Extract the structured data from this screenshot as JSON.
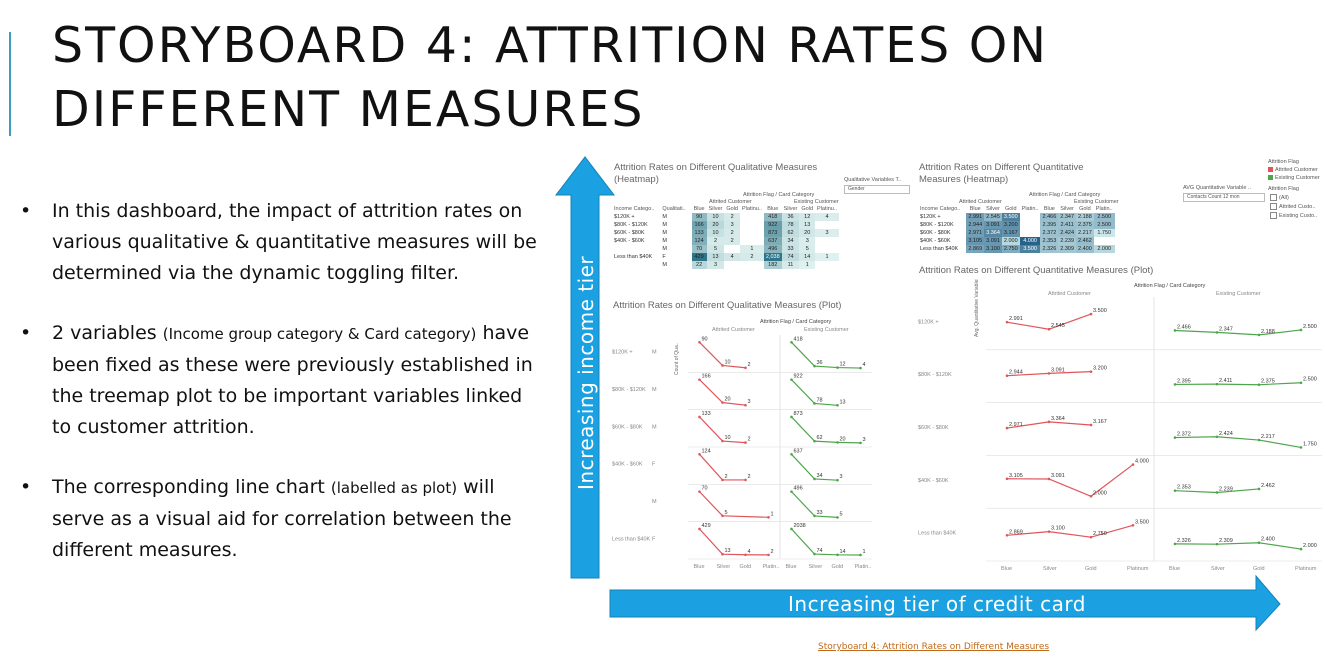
{
  "slide": {
    "title": "STORYBOARD 4: ATTRITION RATES ON DIFFERENT MEASURES",
    "bullets": [
      {
        "text": "In this dashboard, the impact of attrition rates on various qualitative & quantitative measures will be determined via the dynamic toggling filter."
      },
      {
        "pre": "2 variables ",
        "small": "(Income group category & Card category)",
        "post": " have been fixed as these were previously established in the treemap plot to be important variables linked to customer attrition."
      },
      {
        "pre": "The corresponding line chart ",
        "small": "(labelled as plot)",
        "post": " will serve as a visual aid for correlation between the different measures."
      }
    ],
    "bullet_glyph": "•",
    "vertical_arrow_label": "Increasing income tier",
    "horizontal_arrow_label": "Increasing tier of credit card",
    "footer_link": "Storyboard 4: Attrition Rates on Different Measures",
    "arrow_color": "#1ba1e2",
    "accent_color": "#3d9dbd"
  },
  "dashboard": {
    "qual_heatmap": {
      "title": "Attrition Rates on Different Qualitative Measures (Heatmap)",
      "header": "Attrition Flag / Card Category",
      "groups": [
        "Attrited Customer",
        "Existing Customer"
      ],
      "columns": [
        "Income Catego..",
        "Qualitati..",
        "Blue",
        "Silver",
        "Gold",
        "Platinu..",
        "Blue",
        "Silver",
        "Gold",
        "Platinu.."
      ],
      "rows": [
        [
          "$120K +",
          "M",
          "90",
          "10",
          "2",
          "",
          "418",
          "36",
          "12",
          "4"
        ],
        [
          "$80K - $120K",
          "M",
          "166",
          "20",
          "3",
          "",
          "922",
          "78",
          "13",
          ""
        ],
        [
          "$60K - $80K",
          "M",
          "133",
          "10",
          "2",
          "",
          "873",
          "62",
          "20",
          "3"
        ],
        [
          "$40K - $60K",
          "M",
          "124",
          "2",
          "2",
          "",
          "637",
          "34",
          "3",
          ""
        ],
        [
          "",
          "M",
          "70",
          "5",
          "",
          "1",
          "496",
          "33",
          "5",
          ""
        ],
        [
          "Less than $40K",
          "F",
          "429",
          "13",
          "4",
          "2",
          "2,038",
          "74",
          "14",
          "1"
        ],
        [
          "",
          "M",
          "22",
          "3",
          "",
          "",
          "182",
          "11",
          "1",
          ""
        ]
      ],
      "filter_label": "Qualitative Variables T..",
      "filter_value": "Gender"
    },
    "quant_heatmap": {
      "title": "Attrition Rates on Different Quantitative Measures (Heatmap)",
      "header": "Attrition Flag / Card Category",
      "groups": [
        "Attrited Customer",
        "Existing Customer"
      ],
      "columns": [
        "Income Catego..",
        "Blue",
        "Silver",
        "Gold",
        "Platin..",
        "Blue",
        "Silver",
        "Gold",
        "Platin.."
      ],
      "rows": [
        [
          "$120K +",
          "2.991",
          "2.545",
          "3.500",
          "",
          "2.466",
          "2.347",
          "2.188",
          "2.500"
        ],
        [
          "$80K - $120K",
          "2.944",
          "3.091",
          "3.200",
          "",
          "2.395",
          "2.411",
          "2.375",
          "2.500"
        ],
        [
          "$60K - $80K",
          "2.971",
          "3.364",
          "3.167",
          "",
          "2.372",
          "2.424",
          "2.217",
          "1.750"
        ],
        [
          "$40K - $60K",
          "3.105",
          "3.091",
          "2.000",
          "4.000",
          "2.353",
          "2.239",
          "2.462",
          ""
        ],
        [
          "Less than $40K",
          "2.869",
          "3.100",
          "2.750",
          "3.500",
          "2.326",
          "2.309",
          "2.400",
          "2.000"
        ]
      ],
      "filter_label": "AVG Quantitative Variable ..",
      "filter_value": "Contacts Count 12 mon"
    },
    "legend": {
      "title": "Attrition Flag",
      "items": [
        {
          "label": "Attrited Customer",
          "color": "#e0555b"
        },
        {
          "label": "Existing Customer",
          "color": "#4ea64b"
        }
      ],
      "filter_title": "Attrition Flag",
      "filter_items": [
        "(All)",
        "Attrited Custo..",
        "Existing Custo.."
      ]
    },
    "qual_plot": {
      "title": "Attrition Rates on Different Qualitative Measures (Plot)",
      "header": "Attrition Flag / Card Category",
      "groups": [
        "Attrited Customer",
        "Existing Customer"
      ],
      "row_labels": [
        "$120K +",
        "$80K - $120K",
        "$60K - $80K",
        "$40K - $60K",
        "",
        "Less than $40K"
      ],
      "q_labels": [
        "M",
        "M",
        "M",
        "F",
        "M",
        "F"
      ],
      "x_labels": [
        "Blue",
        "Silver",
        "Gold",
        "Platin..",
        "Blue",
        "Silver",
        "Gold",
        "Platin.."
      ],
      "y_axis_label": "Count of Qua..",
      "rows": [
        {
          "attr": [
            90,
            10,
            2,
            null
          ],
          "exist": [
            418,
            36,
            12,
            4
          ],
          "ymax": 400
        },
        {
          "attr": [
            166,
            20,
            3,
            null
          ],
          "exist": [
            922,
            78,
            13,
            null
          ],
          "ymax": 1000
        },
        {
          "attr": [
            133,
            10,
            2,
            null
          ],
          "exist": [
            873,
            62,
            20,
            3
          ],
          "ymax": 800
        },
        {
          "attr": [
            124,
            2,
            2,
            null
          ],
          "exist": [
            637,
            34,
            3,
            null
          ],
          "ymax": 600
        },
        {
          "attr": [
            70,
            5,
            null,
            1
          ],
          "exist": [
            496,
            33,
            5,
            null
          ],
          "ymax": 600
        },
        {
          "attr": [
            429,
            13,
            4,
            2
          ],
          "exist": [
            2038,
            74,
            14,
            1
          ],
          "ymax": 2000
        }
      ]
    },
    "quant_plot": {
      "title": "Attrition Rates on Different Quantitative Measures (Plot)",
      "header": "Attrition Flag / Card Category",
      "groups": [
        "Attrited Customer",
        "Existing Customer"
      ],
      "row_labels": [
        "$120K +",
        "$80K - $120K",
        "$60K - $80K",
        "$40K - $60K",
        "Less than $40K"
      ],
      "x_labels": [
        "Blue",
        "Silver",
        "Gold",
        "Platinum",
        "Blue",
        "Silver",
        "Gold",
        "Platinum"
      ],
      "y_axis_label": "Avg. Quantitative Variables Toggling",
      "rows": [
        {
          "attr": [
            2.991,
            2.545,
            3.5,
            null
          ],
          "exist": [
            2.466,
            2.347,
            2.188,
            2.5
          ]
        },
        {
          "attr": [
            2.944,
            3.091,
            3.2,
            null
          ],
          "exist": [
            2.395,
            2.411,
            2.375,
            2.5
          ]
        },
        {
          "attr": [
            2.971,
            3.364,
            3.167,
            null
          ],
          "exist": [
            2.372,
            2.424,
            2.217,
            1.75
          ]
        },
        {
          "attr": [
            3.105,
            3.091,
            2.0,
            4.0
          ],
          "exist": [
            2.353,
            2.239,
            2.462,
            null
          ]
        },
        {
          "attr": [
            2.869,
            3.1,
            2.75,
            3.5
          ],
          "exist": [
            2.326,
            2.309,
            2.4,
            2.0
          ]
        }
      ]
    }
  }
}
